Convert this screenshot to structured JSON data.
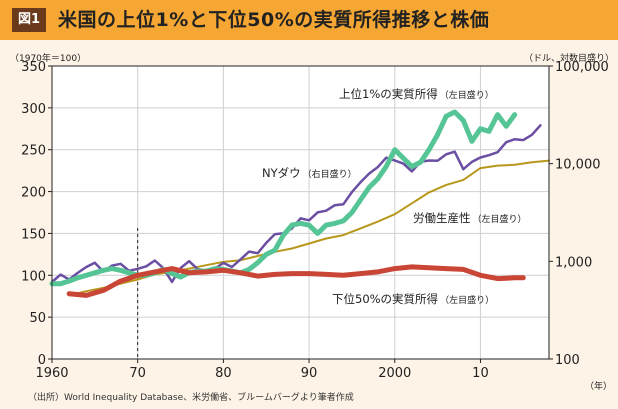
{
  "figure_label": "図1",
  "title": "米国の上位1%と下位50%の実質所得推移と株価",
  "source": "（出所）World Inequality Database、米労働省、ブルームバーグより筆者作成",
  "chart_data": {
    "type": "line",
    "title": "米国の上位1%と下位50%の実質所得推移と株価",
    "left_axis": {
      "unit_label": "（1970年＝100）",
      "range": [
        0,
        350
      ],
      "ticks": [
        "0",
        "50",
        "100",
        "150",
        "200",
        "250",
        "300",
        "350"
      ]
    },
    "right_axis": {
      "unit_label": "（ドル、対数目盛り）",
      "scale": "log",
      "range": [
        100,
        100000
      ],
      "ticks": [
        "100",
        "1,000",
        "10,000",
        "100,000"
      ]
    },
    "x_axis": {
      "unit_label": "（年）",
      "range": [
        1960,
        2018
      ],
      "ticks": [
        {
          "value": 1960,
          "label": "1960"
        },
        {
          "value": 1970,
          "label": "70"
        },
        {
          "value": 1980,
          "label": "80"
        },
        {
          "value": 1990,
          "label": "90"
        },
        {
          "value": 2000,
          "label": "2000"
        },
        {
          "value": 2010,
          "label": "10"
        }
      ]
    },
    "reference_line_year": 1970,
    "series": [
      {
        "name": "上位1%の実質所得",
        "axis_note": "（左目盛り）",
        "axis": "left",
        "color": "#55c596",
        "width": 5,
        "x": [
          1960,
          1961,
          1962,
          1963,
          1964,
          1965,
          1966,
          1967,
          1968,
          1969,
          1970,
          1971,
          1972,
          1973,
          1974,
          1975,
          1976,
          1977,
          1978,
          1979,
          1980,
          1981,
          1982,
          1983,
          1984,
          1985,
          1986,
          1987,
          1988,
          1989,
          1990,
          1991,
          1992,
          1993,
          1994,
          1995,
          1996,
          1997,
          1998,
          1999,
          2000,
          2001,
          2002,
          2003,
          2004,
          2005,
          2006,
          2007,
          2008,
          2009,
          2010,
          2011,
          2012,
          2013,
          2014
        ],
        "y": [
          90,
          90,
          93,
          97,
          100,
          103,
          106,
          108,
          106,
          103,
          100,
          100,
          103,
          107,
          102,
          98,
          103,
          105,
          105,
          108,
          107,
          105,
          103,
          107,
          115,
          125,
          130,
          148,
          160,
          162,
          160,
          150,
          160,
          162,
          165,
          175,
          190,
          205,
          215,
          230,
          250,
          240,
          230,
          235,
          250,
          268,
          290,
          295,
          285,
          260,
          275,
          272,
          292,
          278,
          292
        ]
      },
      {
        "name": "NYダウ",
        "axis_note": "（右目盛り）",
        "axis": "right",
        "color": "#6b4fa3",
        "width": 2.5,
        "x": [
          1960,
          1961,
          1962,
          1963,
          1964,
          1965,
          1966,
          1967,
          1968,
          1969,
          1970,
          1971,
          1972,
          1973,
          1974,
          1975,
          1976,
          1977,
          1978,
          1979,
          1980,
          1981,
          1982,
          1983,
          1984,
          1985,
          1986,
          1987,
          1988,
          1989,
          1990,
          1991,
          1992,
          1993,
          1994,
          1995,
          1996,
          1997,
          1998,
          1999,
          2000,
          2001,
          2002,
          2003,
          2004,
          2005,
          2006,
          2007,
          2008,
          2009,
          2010,
          2011,
          2012,
          2013,
          2014,
          2015,
          2016,
          2017
        ],
        "y": [
          615,
          731,
          652,
          762,
          874,
          969,
          785,
          905,
          943,
          800,
          838,
          890,
          1020,
          850,
          616,
          852,
          1004,
          831,
          805,
          838,
          963,
          875,
          1046,
          1258,
          1211,
          1546,
          1895,
          1938,
          2168,
          2753,
          2633,
          3168,
          3301,
          3754,
          3834,
          5117,
          6448,
          7908,
          9181,
          11497,
          10787,
          10021,
          8341,
          10453,
          10783,
          10717,
          12463,
          13264,
          8776,
          10428,
          11577,
          12217,
          13104,
          16576,
          17823,
          17425,
          19762,
          24719
        ]
      },
      {
        "name": "労働生産性",
        "axis_note": "（左目盛り）",
        "axis": "left",
        "color": "#b8981c",
        "width": 2,
        "x": [
          1962,
          1964,
          1966,
          1968,
          1970,
          1972,
          1974,
          1976,
          1978,
          1980,
          1982,
          1984,
          1986,
          1988,
          1990,
          1992,
          1994,
          1996,
          1998,
          2000,
          2002,
          2004,
          2006,
          2008,
          2010,
          2012,
          2014,
          2016,
          2018
        ],
        "y": [
          76,
          81,
          85,
          90,
          95,
          101,
          104,
          108,
          112,
          116,
          118,
          123,
          128,
          132,
          138,
          144,
          148,
          156,
          164,
          173,
          186,
          199,
          208,
          214,
          228,
          231,
          232,
          235,
          237
        ]
      },
      {
        "name": "下位50%の実質所得",
        "axis_note": "（左目盛り）",
        "axis": "left",
        "color": "#c94536",
        "width": 5,
        "x": [
          1962,
          1964,
          1966,
          1968,
          1970,
          1972,
          1974,
          1976,
          1978,
          1980,
          1982,
          1984,
          1986,
          1988,
          1990,
          1992,
          1994,
          1996,
          1998,
          2000,
          2002,
          2004,
          2006,
          2008,
          2010,
          2012,
          2014,
          2015
        ],
        "y": [
          78,
          76,
          82,
          93,
          100,
          104,
          108,
          103,
          104,
          106,
          103,
          99,
          101,
          102,
          102,
          101,
          100,
          102,
          104,
          108,
          110,
          109,
          108,
          107,
          100,
          96,
          97,
          97
        ]
      }
    ]
  }
}
